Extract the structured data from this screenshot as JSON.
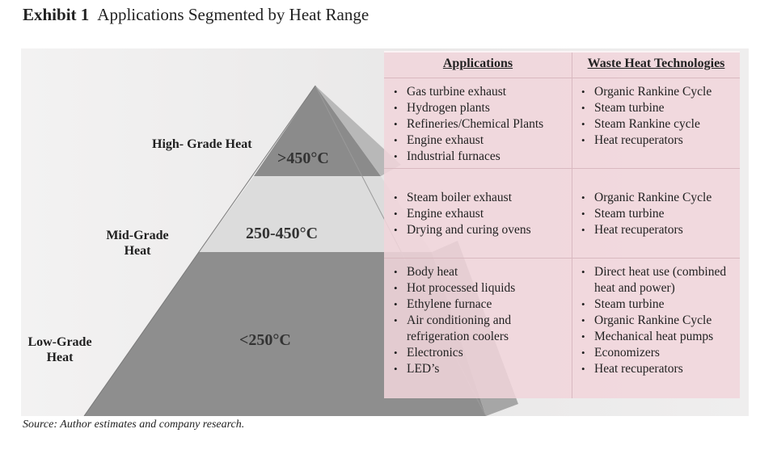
{
  "exhibit": {
    "number": "Exhibit 1",
    "title": "Applications Segmented by Heat Range"
  },
  "pyramid": {
    "levels": [
      {
        "name": "High- Grade Heat",
        "temp": ">450°C"
      },
      {
        "name_line1": "Mid-Grade",
        "name_line2": "Heat",
        "temp": "250-450°C"
      },
      {
        "name_line1": "Low-Grade",
        "name_line2": "Heat",
        "temp": "<250°C"
      }
    ]
  },
  "table": {
    "headers": [
      "Applications",
      "Waste Heat Technologies"
    ],
    "rows": [
      {
        "applications": [
          "Gas turbine exhaust",
          "Hydrogen plants",
          "Refineries/Chemical Plants",
          "Engine exhaust",
          "Industrial furnaces"
        ],
        "technologies": [
          "Organic Rankine Cycle",
          "Steam turbine",
          "Steam Rankine cycle",
          "Heat recuperators"
        ]
      },
      {
        "applications": [
          "Steam boiler exhaust",
          "Engine exhaust",
          "Drying and curing ovens"
        ],
        "technologies": [
          "Organic Rankine Cycle",
          "Steam turbine",
          "Heat recuperators"
        ]
      },
      {
        "applications": [
          "Body heat",
          "Hot processed liquids",
          "Ethylene furnace",
          "Air conditioning and refrigeration coolers",
          "Electronics",
          "LED’s"
        ],
        "technologies": [
          "Direct heat use (combined heat and power)",
          "Steam turbine",
          "Organic Rankine Cycle",
          "Mechanical heat pumps",
          "Economizers",
          "Heat recuperators"
        ]
      }
    ]
  },
  "source": "Source: Author estimates and company research.",
  "colors": {
    "table_bg": "#f1d5db",
    "top_level": "#8c8c8c",
    "mid_level": "#dcdcdc",
    "bottom_level": "#8f8f8f"
  }
}
